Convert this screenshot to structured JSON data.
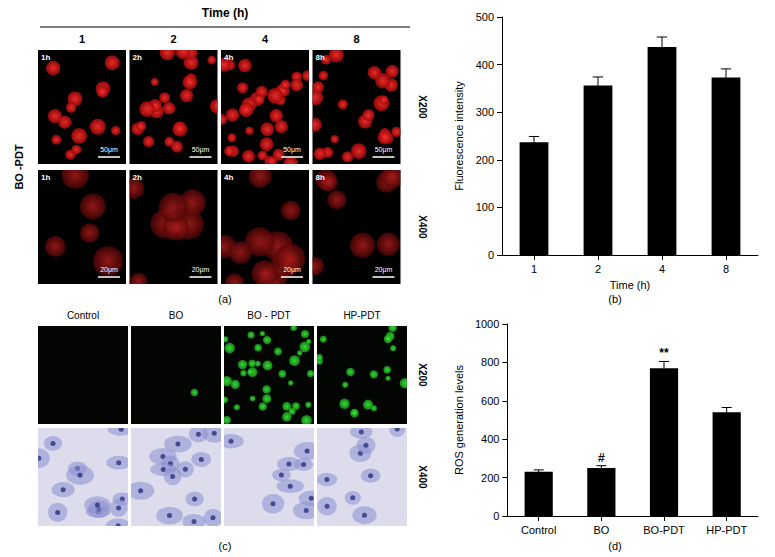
{
  "figure": {
    "panel_a": {
      "panel_label": "(a)",
      "header": "Time (h)",
      "columns": [
        "1",
        "2",
        "4",
        "8"
      ],
      "row_title": "BO -PDT",
      "rows": [
        {
          "magnification": "X200",
          "tags": [
            "1h",
            "2h",
            "4h",
            "8h"
          ],
          "scale_bar": "50μm"
        },
        {
          "magnification": "X400",
          "tags": [
            "1h",
            "2h",
            "4h",
            "8h"
          ],
          "scale_bar": "20μm"
        }
      ]
    },
    "panel_c": {
      "panel_label": "(c)",
      "columns": [
        "Control",
        "BO",
        "BO - PDT",
        "HP-PDT"
      ],
      "rows": [
        {
          "magnification": "X200"
        },
        {
          "magnification": "X400"
        }
      ]
    }
  },
  "chart_data": [
    {
      "type": "bar",
      "panel_label": "(b)",
      "xlabel": "Time (h)",
      "ylabel": "Fluorescence intensity",
      "categories": [
        "1",
        "2",
        "4",
        "8"
      ],
      "values": [
        237,
        356,
        437,
        373
      ],
      "errors": [
        12,
        18,
        21,
        18
      ],
      "color": "#000000",
      "ylim": [
        0,
        500
      ],
      "yticks": [
        0,
        100,
        200,
        300,
        400,
        500
      ],
      "grid": false
    },
    {
      "type": "bar",
      "panel_label": "(d)",
      "ylabel": "ROS generation levels",
      "categories": [
        "Control",
        "BO",
        "BO-PDT",
        "HP-PDT"
      ],
      "values": [
        230,
        250,
        770,
        540
      ],
      "errors": [
        10,
        12,
        35,
        25
      ],
      "annotations": [
        {
          "category": "BO",
          "text": "#"
        },
        {
          "category": "BO-PDT",
          "text": "**"
        }
      ],
      "color": "#000000",
      "ylim": [
        0,
        1000
      ],
      "yticks": [
        0,
        200,
        400,
        600,
        800,
        1000
      ],
      "grid": false
    }
  ]
}
